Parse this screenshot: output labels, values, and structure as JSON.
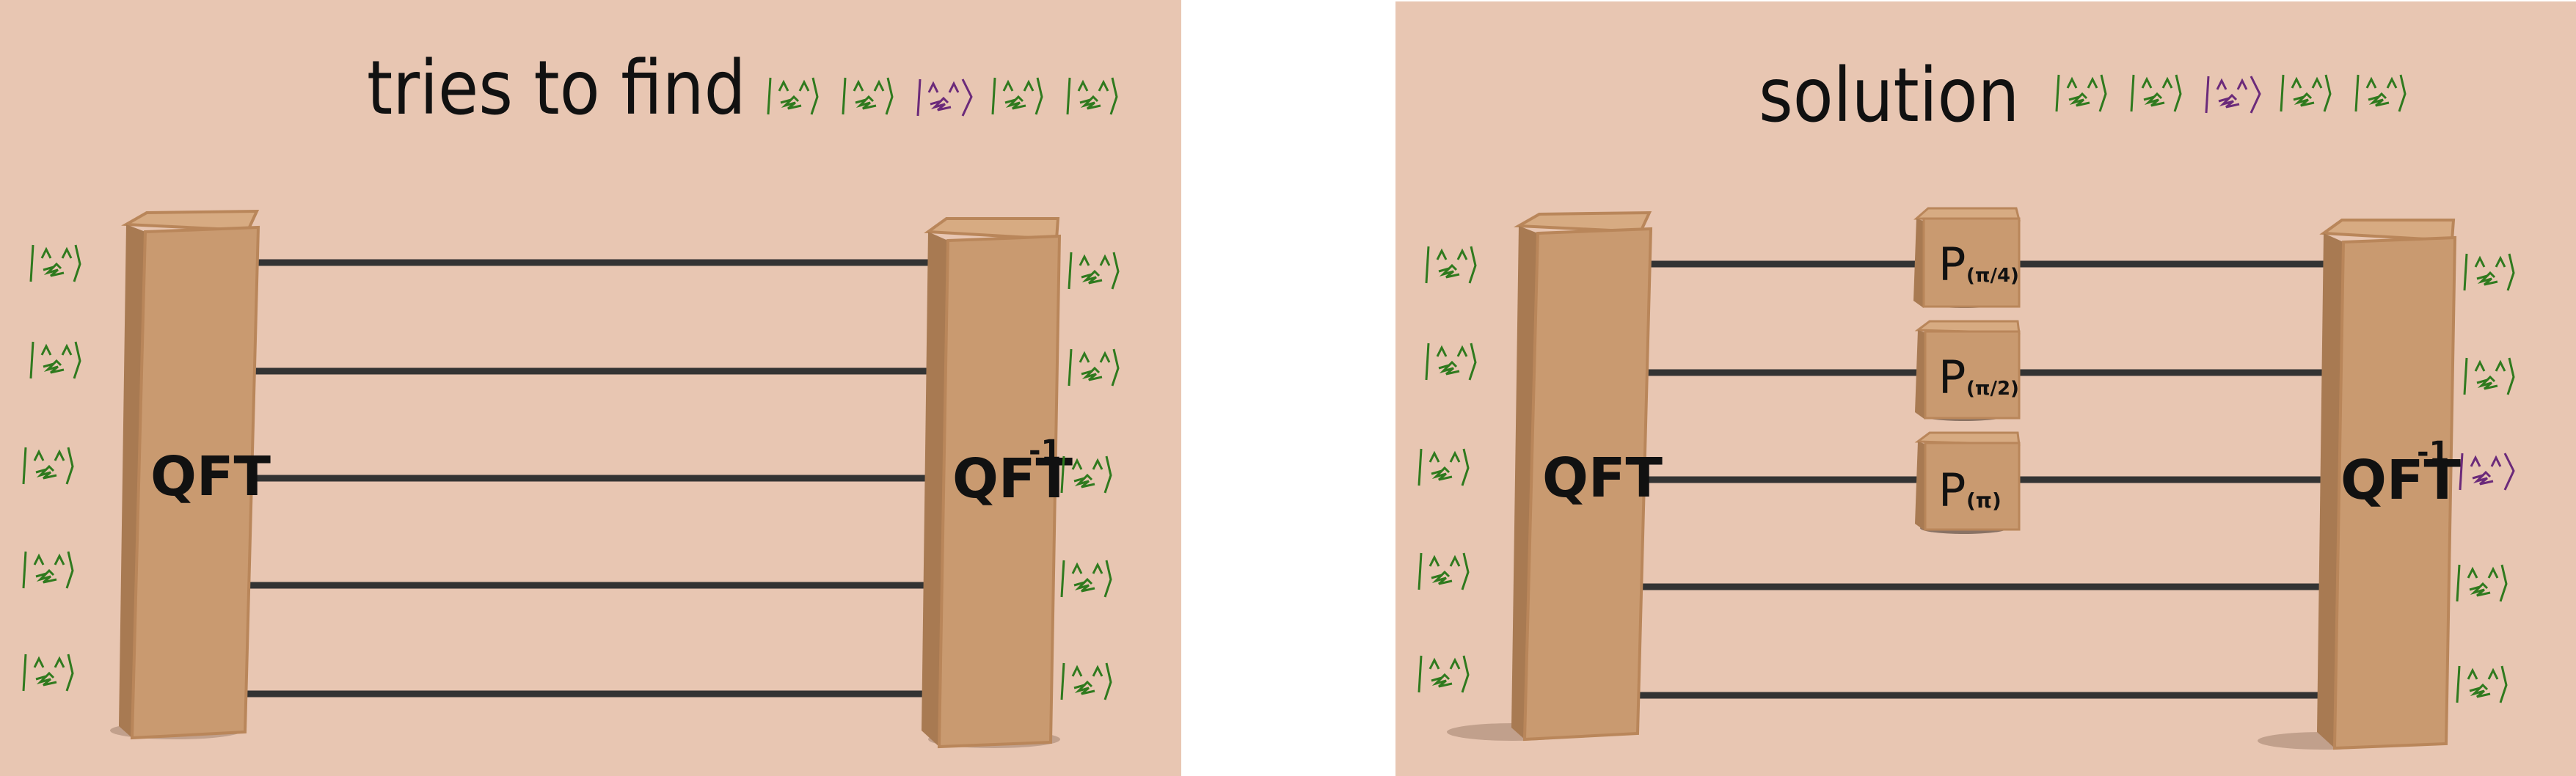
{
  "left_panel": {
    "title": "tries to find",
    "qft_label": "QFT",
    "iqft_label": "QFT",
    "iqft_superscript": "-1"
  },
  "right_panel": {
    "title": "solution",
    "qft_label": "QFT",
    "iqft_label": "QFT",
    "iqft_superscript": "-1",
    "phase_gates": [
      {
        "label": "P",
        "arg": "(π/4)"
      },
      {
        "label": "P",
        "arg": "(π/2)"
      },
      {
        "label": "P",
        "arg": "(π)"
      }
    ]
  },
  "colors": {
    "background": "#e8c6b2",
    "box": "#c99a70",
    "box_side": "#a87a52",
    "wire": "#333333",
    "ket_green": "#2f7a1e",
    "ket_purple": "#6b2a7a"
  },
  "icons": [
    "cat-face-ket-icon"
  ]
}
